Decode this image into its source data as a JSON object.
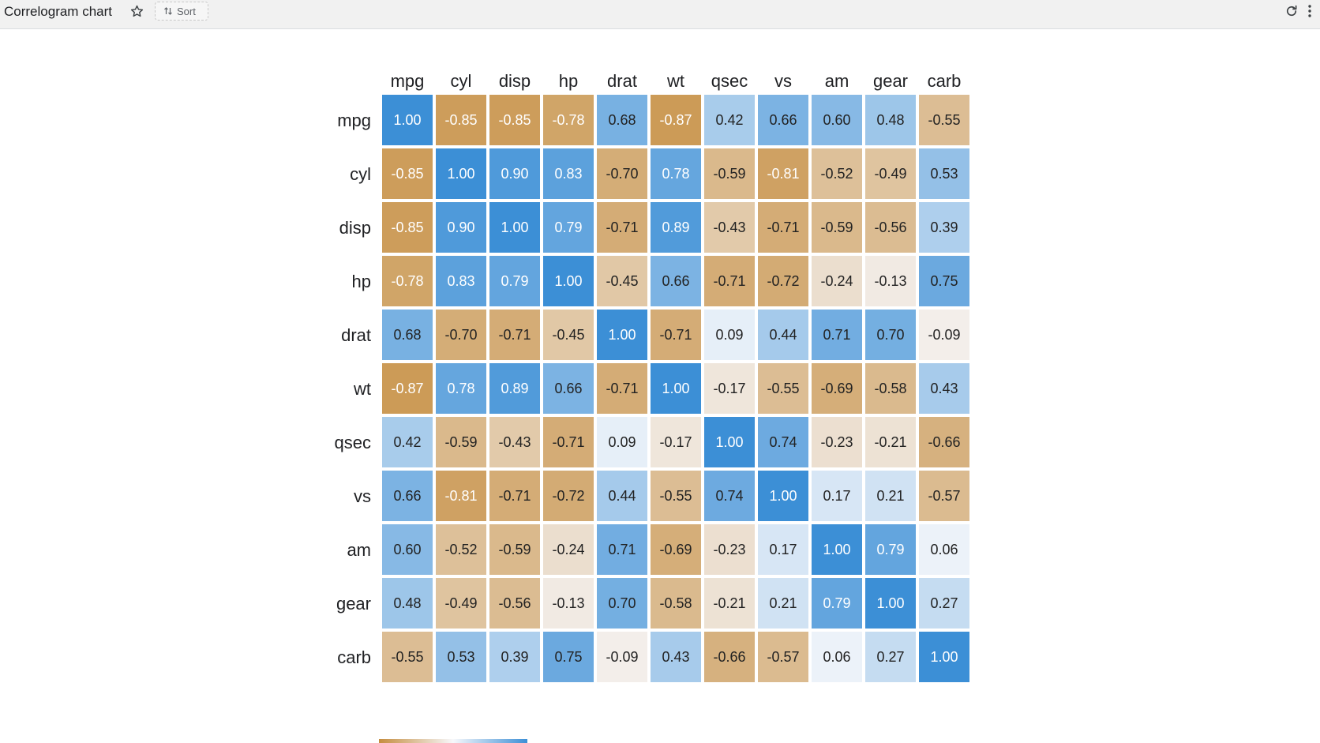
{
  "header": {
    "title": "Correlogram chart",
    "sort_label": "Sort",
    "star_icon": "star-outline-icon",
    "sort_icon": "sort-arrows-icon",
    "refresh_icon": "refresh-icon",
    "menu_icon": "more-vert-icon"
  },
  "colors": {
    "negative": "#c58d3f",
    "neutral": "#f7f8fb",
    "positive": "#3c8fd6",
    "cell_text_dark": "#222222",
    "cell_text_light": "#ffffff"
  },
  "chart_data": {
    "type": "heatmap",
    "variables": [
      "mpg",
      "cyl",
      "disp",
      "hp",
      "drat",
      "wt",
      "qsec",
      "vs",
      "am",
      "gear",
      "carb"
    ],
    "matrix": [
      [
        1.0,
        -0.85,
        -0.85,
        -0.78,
        0.68,
        -0.87,
        0.42,
        0.66,
        0.6,
        0.48,
        -0.55
      ],
      [
        -0.85,
        1.0,
        0.9,
        0.83,
        -0.7,
        0.78,
        -0.59,
        -0.81,
        -0.52,
        -0.49,
        0.53
      ],
      [
        -0.85,
        0.9,
        1.0,
        0.79,
        -0.71,
        0.89,
        -0.43,
        -0.71,
        -0.59,
        -0.56,
        0.39
      ],
      [
        -0.78,
        0.83,
        0.79,
        1.0,
        -0.45,
        0.66,
        -0.71,
        -0.72,
        -0.24,
        -0.13,
        0.75
      ],
      [
        0.68,
        -0.7,
        -0.71,
        -0.45,
        1.0,
        -0.71,
        0.09,
        0.44,
        0.71,
        0.7,
        -0.09
      ],
      [
        -0.87,
        0.78,
        0.89,
        0.66,
        -0.71,
        1.0,
        -0.17,
        -0.55,
        -0.69,
        -0.58,
        0.43
      ],
      [
        0.42,
        -0.59,
        -0.43,
        -0.71,
        0.09,
        -0.17,
        1.0,
        0.74,
        -0.23,
        -0.21,
        -0.66
      ],
      [
        0.66,
        -0.81,
        -0.71,
        -0.72,
        0.44,
        -0.55,
        0.74,
        1.0,
        0.17,
        0.21,
        -0.57
      ],
      [
        0.6,
        -0.52,
        -0.59,
        -0.24,
        0.71,
        -0.69,
        -0.23,
        0.17,
        1.0,
        0.79,
        0.06
      ],
      [
        0.48,
        -0.49,
        -0.56,
        -0.13,
        0.7,
        -0.58,
        -0.21,
        0.21,
        0.79,
        1.0,
        0.27
      ],
      [
        -0.55,
        0.53,
        0.39,
        0.75,
        -0.09,
        0.43,
        -0.66,
        -0.57,
        0.06,
        0.27,
        1.0
      ]
    ],
    "value_range": [
      -1,
      1
    ],
    "legend": "bottom-left",
    "grid": false
  }
}
